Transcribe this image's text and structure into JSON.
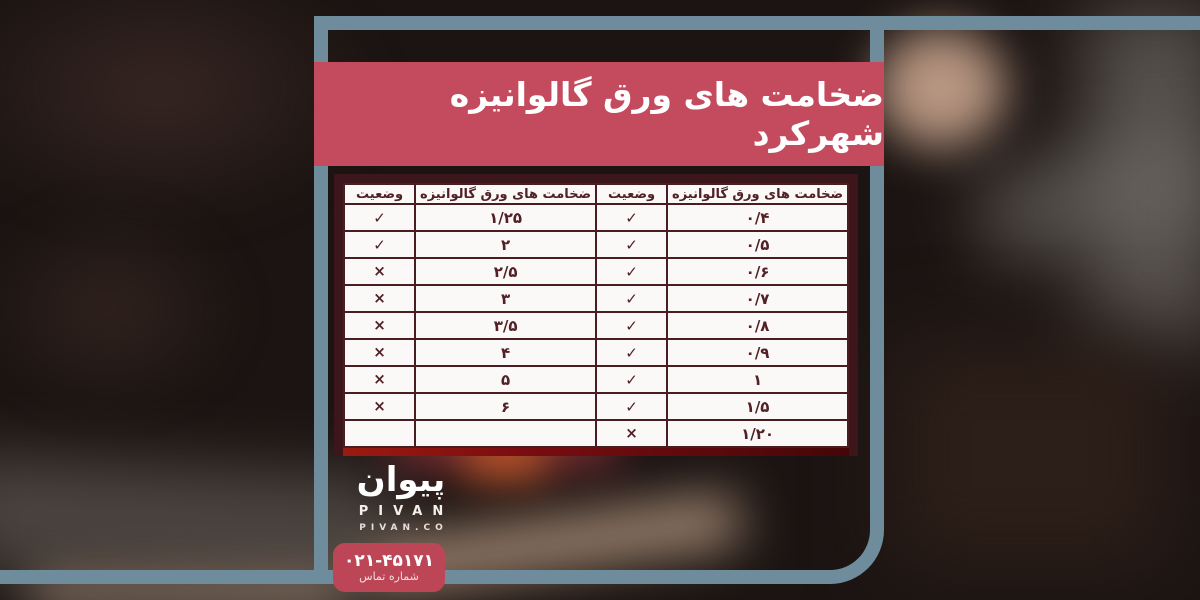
{
  "banner": {
    "title": "ضخامت های ورق گالوانیزه شهرکرد"
  },
  "table": {
    "headers": [
      "ضخامت های ورق گالوانیزه",
      "وضعیت",
      "ضخامت های ورق گالوانیزه",
      "وضعیت"
    ],
    "rows": [
      {
        "t1": "۰/۴",
        "s1": "✓",
        "t2": "۱/۲۵",
        "s2": "✓",
        "ghost": false
      },
      {
        "t1": "۰/۵",
        "s1": "✓",
        "t2": "۲",
        "s2": "✓",
        "ghost": false
      },
      {
        "t1": "۰/۶",
        "s1": "✓",
        "t2": "۲/۵",
        "s2": "×",
        "ghost": false
      },
      {
        "t1": "۰/۷",
        "s1": "✓",
        "t2": "۳",
        "s2": "×",
        "ghost": false
      },
      {
        "t1": "۰/۸",
        "s1": "✓",
        "t2": "۳/۵",
        "s2": "×",
        "ghost": false
      },
      {
        "t1": "۰/۹",
        "s1": "✓",
        "t2": "۴",
        "s2": "×",
        "ghost": false
      },
      {
        "t1": "۱",
        "s1": "✓",
        "t2": "۵",
        "s2": "×",
        "ghost": false
      },
      {
        "t1": "۱/۵",
        "s1": "✓",
        "t2": "۶",
        "s2": "×",
        "ghost": false
      },
      {
        "t1": "۱/۲۰",
        "s1": "×",
        "t2": "",
        "s2": "",
        "ghost": true
      }
    ],
    "status_check_glyph": "✓",
    "status_cross_glyph": "×"
  },
  "logo": {
    "wordmark_fa": "پیوان",
    "name_en": "PIVAN",
    "domain": "PIVAN.CO"
  },
  "contact": {
    "phone": "۰۲۱-۴۵۱۷۱",
    "label": "شماره تماس"
  },
  "colors": {
    "banner_red": "#c44b5e",
    "badge_red": "#bd4656",
    "frame_blue_gray": "#6e8c9b",
    "table_frame_maroon": "#3c161a",
    "table_text_maroon": "#512125",
    "table_bottom_red": "#7a0d11"
  }
}
